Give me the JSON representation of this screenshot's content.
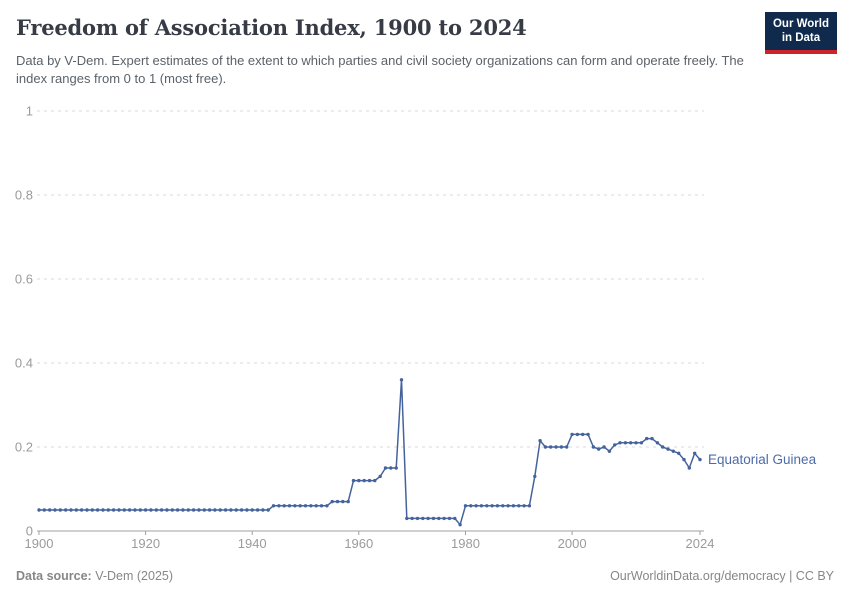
{
  "header": {
    "title": "Freedom of Association Index, 1900 to 2024",
    "subtitle": "Data by V-Dem. Expert estimates of the extent to which parties and civil society organizations can form and operate freely. The index ranges from 0 to 1 (most free).",
    "logo_line1": "Our World",
    "logo_line2": "in Data"
  },
  "colors": {
    "line": "#44639c",
    "series_label": "#4d6ba8",
    "grid": "#dadada",
    "axis": "#a1a1a1",
    "tick_text": "#9b9b9b",
    "logo_bg": "#102a4e",
    "logo_red": "#cc2428",
    "title_text": "#363b45",
    "subtitle_text": "#5b6269",
    "footer_text": "#878787"
  },
  "chart_data": {
    "type": "line",
    "title": "Freedom of Association Index, 1900 to 2024",
    "xlabel": "",
    "ylabel": "",
    "x_start": 1900,
    "x_end": 2024,
    "x_step": 1,
    "ylim": [
      0,
      1
    ],
    "yticks": [
      0,
      0.2,
      0.4,
      0.6,
      0.8,
      1
    ],
    "xticks": [
      1900,
      1920,
      1940,
      1960,
      1980,
      2000,
      2024
    ],
    "grid": "horizontal-dashed",
    "legend": "end-of-line-label",
    "series": [
      {
        "name": "Equatorial Guinea",
        "values": [
          0.05,
          0.05,
          0.05,
          0.05,
          0.05,
          0.05,
          0.05,
          0.05,
          0.05,
          0.05,
          0.05,
          0.05,
          0.05,
          0.05,
          0.05,
          0.05,
          0.05,
          0.05,
          0.05,
          0.05,
          0.05,
          0.05,
          0.05,
          0.05,
          0.05,
          0.05,
          0.05,
          0.05,
          0.05,
          0.05,
          0.05,
          0.05,
          0.05,
          0.05,
          0.05,
          0.05,
          0.05,
          0.05,
          0.05,
          0.05,
          0.05,
          0.05,
          0.05,
          0.05,
          0.06,
          0.06,
          0.06,
          0.06,
          0.06,
          0.06,
          0.06,
          0.06,
          0.06,
          0.06,
          0.06,
          0.07,
          0.07,
          0.07,
          0.07,
          0.12,
          0.12,
          0.12,
          0.12,
          0.12,
          0.13,
          0.15,
          0.15,
          0.15,
          0.36,
          0.03,
          0.03,
          0.03,
          0.03,
          0.03,
          0.03,
          0.03,
          0.03,
          0.03,
          0.03,
          0.015,
          0.06,
          0.06,
          0.06,
          0.06,
          0.06,
          0.06,
          0.06,
          0.06,
          0.06,
          0.06,
          0.06,
          0.06,
          0.06,
          0.13,
          0.215,
          0.2,
          0.2,
          0.2,
          0.2,
          0.2,
          0.23,
          0.23,
          0.23,
          0.23,
          0.2,
          0.195,
          0.2,
          0.19,
          0.205,
          0.21,
          0.21,
          0.21,
          0.21,
          0.21,
          0.22,
          0.22,
          0.21,
          0.2,
          0.195,
          0.19,
          0.185,
          0.17,
          0.15,
          0.185,
          0.17
        ]
      }
    ]
  },
  "footer": {
    "source_label": "Data source:",
    "source_value": " V-Dem (2025)",
    "credit": "OurWorldinData.org/democracy | CC BY"
  }
}
